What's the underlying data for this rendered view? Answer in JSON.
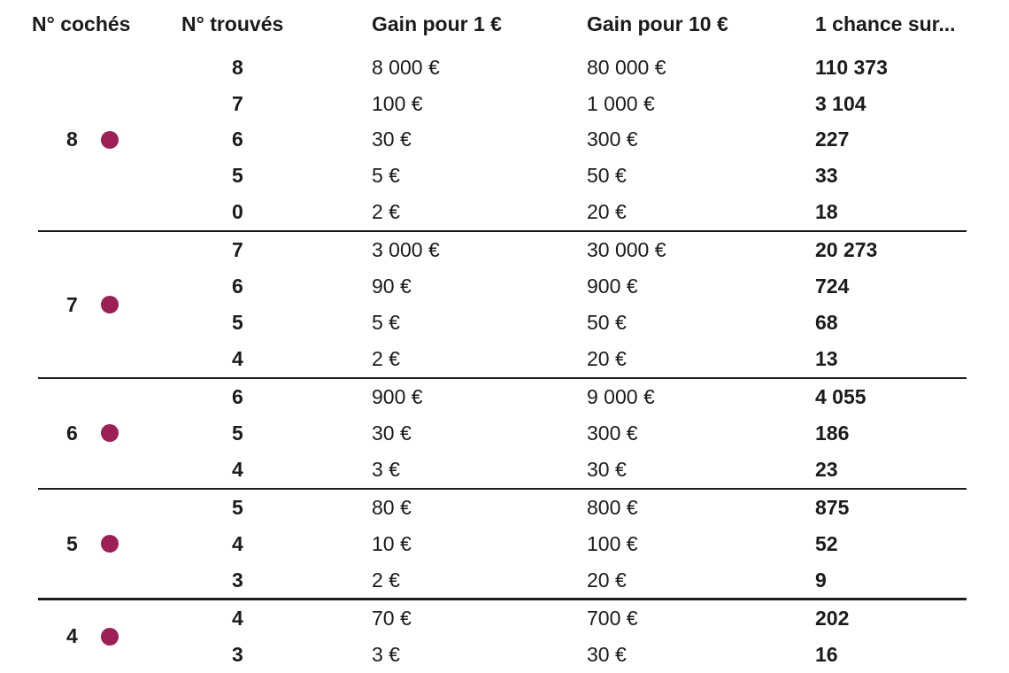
{
  "table": {
    "text_color": "#1b1b1b",
    "dot_color": "#9C1F56",
    "rule_color": "#1b1b1b",
    "columns": [
      "N° cochés",
      "N° trouvés",
      "Gain pour 1 €",
      "Gain pour 10 €",
      "1 chance sur..."
    ],
    "groups": [
      {
        "coches": "8",
        "rows": [
          {
            "trouves": "8",
            "gain1": "8 000 €",
            "gain10": "80 000 €",
            "chance": "110 373"
          },
          {
            "trouves": "7",
            "gain1": "100 €",
            "gain10": "1 000 €",
            "chance": "3 104"
          },
          {
            "trouves": "6",
            "gain1": "30 €",
            "gain10": "300 €",
            "chance": "227"
          },
          {
            "trouves": "5",
            "gain1": "5 €",
            "gain10": "50 €",
            "chance": "33"
          },
          {
            "trouves": "0",
            "gain1": "2 €",
            "gain10": "20 €",
            "chance": "18"
          }
        ]
      },
      {
        "coches": "7",
        "rows": [
          {
            "trouves": "7",
            "gain1": "3 000 €",
            "gain10": "30 000 €",
            "chance": "20 273"
          },
          {
            "trouves": "6",
            "gain1": "90 €",
            "gain10": "900 €",
            "chance": "724"
          },
          {
            "trouves": "5",
            "gain1": "5 €",
            "gain10": "50 €",
            "chance": "68"
          },
          {
            "trouves": "4",
            "gain1": "2 €",
            "gain10": "20 €",
            "chance": "13"
          }
        ]
      },
      {
        "coches": "6",
        "rows": [
          {
            "trouves": "6",
            "gain1": "900 €",
            "gain10": "9 000 €",
            "chance": "4 055"
          },
          {
            "trouves": "5",
            "gain1": "30 €",
            "gain10": "300 €",
            "chance": "186"
          },
          {
            "trouves": "4",
            "gain1": "3 €",
            "gain10": "30 €",
            "chance": "23"
          }
        ]
      },
      {
        "coches": "5",
        "rows": [
          {
            "trouves": "5",
            "gain1": "80 €",
            "gain10": "800 €",
            "chance": "875"
          },
          {
            "trouves": "4",
            "gain1": "10 €",
            "gain10": "100 €",
            "chance": "52"
          },
          {
            "trouves": "3",
            "gain1": "2 €",
            "gain10": "20 €",
            "chance": "9"
          }
        ]
      },
      {
        "coches": "4",
        "rows": [
          {
            "trouves": "4",
            "gain1": "70 €",
            "gain10": "700 €",
            "chance": "202"
          },
          {
            "trouves": "3",
            "gain1": "3 €",
            "gain10": "30 €",
            "chance": "16"
          }
        ]
      }
    ]
  }
}
